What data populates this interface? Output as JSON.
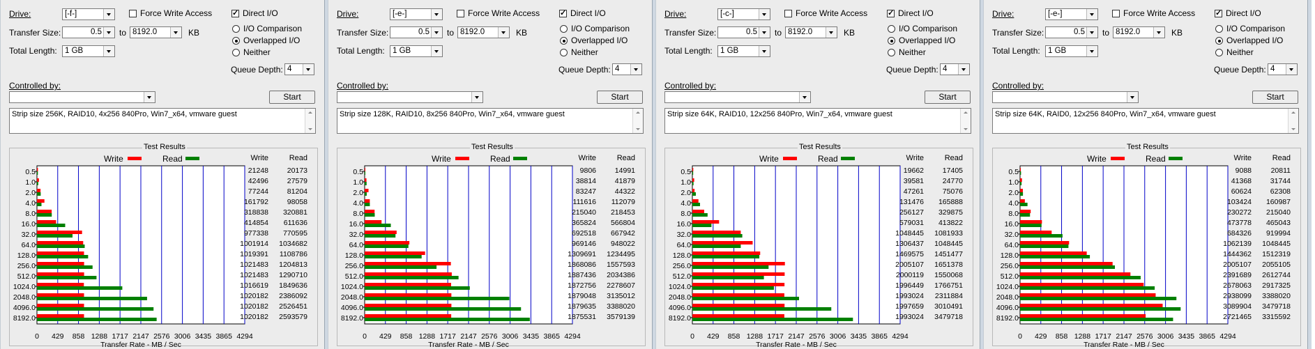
{
  "labels": {
    "drive": "Drive:",
    "transfer_size": "Transfer Size:",
    "to": "to",
    "kb": "KB",
    "total_length": "Total Length:",
    "force_write_access": "Force Write Access",
    "direct_io": "Direct I/O",
    "io_comparison": "I/O Comparison",
    "overlapped_io": "Overlapped I/O",
    "neither": "Neither",
    "queue_depth": "Queue Depth:",
    "controlled_by": "Controlled by:",
    "start": "Start",
    "test_results": "Test Results",
    "write": "Write",
    "read": "Read",
    "x_axis_title": "Transfer Rate - MB / Sec"
  },
  "colors": {
    "write": "#ff0000",
    "read": "#008000",
    "gridline": "#0000c8",
    "window_bg": "#ececec"
  },
  "panels": [
    {
      "drive": "[-f-]",
      "transfer_min": "0.5",
      "transfer_max": "8192.0",
      "total_length": "1 GB",
      "force_write_access": false,
      "direct_io": true,
      "mode": "overlapped",
      "queue_depth": "4",
      "controlled_by": "",
      "description": "Strip size 256K, RAID10, 4x256 840Pro, Win7_x64, vmware guest",
      "write": [
        "21248",
        "42496",
        "77244",
        "161792",
        "318838",
        "414854",
        "977338",
        "1001914",
        "1019391",
        "1021483",
        "1021483",
        "1016619",
        "1020182",
        "1020182",
        "1020182"
      ],
      "read": [
        "20173",
        "27579",
        "81204",
        "98058",
        "320881",
        "611636",
        "770595",
        "1034682",
        "1108786",
        "1204813",
        "1290710",
        "1849636",
        "2386092",
        "2526451",
        "2593579"
      ]
    },
    {
      "drive": "[-e-]",
      "transfer_min": "0.5",
      "transfer_max": "8192.0",
      "total_length": "1 GB",
      "force_write_access": false,
      "direct_io": true,
      "mode": "overlapped",
      "queue_depth": "4",
      "controlled_by": "",
      "description": "Strip size 128K, RAID10, 8x256 840Pro, Win7_x64, vmware guest",
      "write": [
        "9806",
        "38814",
        "83247",
        "111616",
        "215040",
        "365824",
        "692518",
        "969146",
        "1309691",
        "1868086",
        "1887436",
        "1872756",
        "1879048",
        "1879635",
        "1875531"
      ],
      "read": [
        "14991",
        "41879",
        "44322",
        "112079",
        "218453",
        "566804",
        "667942",
        "948022",
        "1234495",
        "1557593",
        "2034386",
        "2278607",
        "3135012",
        "3388020",
        "3579139"
      ]
    },
    {
      "drive": "[-c-]",
      "transfer_min": "0.5",
      "transfer_max": "8192.0",
      "total_length": "1 GB",
      "force_write_access": false,
      "direct_io": true,
      "mode": "overlapped",
      "queue_depth": "4",
      "controlled_by": "",
      "description": "Strip size 64K, RAID10, 12x256 840Pro, Win7_x64, vmware guest",
      "write": [
        "19662",
        "39581",
        "47261",
        "131476",
        "256127",
        "579031",
        "1048445",
        "1306437",
        "1469575",
        "2005107",
        "2000119",
        "1996449",
        "1993024",
        "1997659",
        "1993024"
      ],
      "read": [
        "17405",
        "24770",
        "75076",
        "165888",
        "329875",
        "413822",
        "1081933",
        "1048445",
        "1451477",
        "1651378",
        "1550068",
        "1766751",
        "2311884",
        "3010491",
        "3479718"
      ]
    },
    {
      "drive": "[-e-]",
      "transfer_min": "0.5",
      "transfer_max": "8192.0",
      "total_length": "1 GB",
      "force_write_access": false,
      "direct_io": true,
      "mode": "overlapped",
      "queue_depth": "4",
      "controlled_by": "",
      "description": "Strip size 64K, RAID0, 12x256 840Pro, Win7_x64, vmware guest",
      "write": [
        "9088",
        "41368",
        "60624",
        "103424",
        "230272",
        "473778",
        "684326",
        "1062139",
        "1444362",
        "2005107",
        "2391689",
        "2678063",
        "2938099",
        "3089904",
        "2721465"
      ],
      "read": [
        "20811",
        "31744",
        "62308",
        "160987",
        "215040",
        "465043",
        "919994",
        "1048445",
        "1512319",
        "2055105",
        "2612744",
        "2917325",
        "3388020",
        "3479718",
        "3315592"
      ]
    }
  ],
  "chart_data": {
    "type": "bar",
    "orientation": "horizontal",
    "xlabel": "Transfer Rate - MB / Sec",
    "ylabel": "",
    "categories": [
      "0.5",
      "1.0",
      "2.0",
      "4.0",
      "8.0",
      "16.0",
      "32.0",
      "64.0",
      "128.0",
      "256.0",
      "512.0",
      "1024.0",
      "2048.0",
      "4096.0",
      "8192.0"
    ],
    "x_ticks": [
      "0",
      "429",
      "858",
      "1288",
      "1717",
      "2147",
      "2576",
      "3006",
      "3435",
      "3865",
      "4294"
    ],
    "xlim": [
      0,
      4294
    ],
    "grid": true,
    "legend": "top",
    "charts": [
      {
        "series": [
          {
            "name": "Write",
            "values": [
              20.3,
              40.5,
              73.7,
              154.3,
              304.1,
              395.6,
              932.0,
              955.5,
              972.2,
              974.2,
              974.2,
              969.5,
              972.9,
              972.9,
              972.9
            ]
          },
          {
            "name": "Read",
            "values": [
              19.2,
              26.3,
              77.4,
              93.5,
              306.0,
              583.3,
              734.9,
              986.7,
              1057.4,
              1149.0,
              1230.9,
              1764.0,
              2275.5,
              2409.4,
              2473.4
            ]
          }
        ]
      },
      {
        "series": [
          {
            "name": "Write",
            "values": [
              9.4,
              37.0,
              79.4,
              106.4,
              205.1,
              348.9,
              660.4,
              924.2,
              1249.0,
              1781.5,
              1800.0,
              1786.0,
              1792.0,
              1792.6,
              1788.6
            ]
          },
          {
            "name": "Read",
            "values": [
              14.3,
              39.9,
              42.3,
              106.9,
              208.3,
              540.5,
              637.0,
              904.1,
              1177.3,
              1485.4,
              1940.1,
              2173.0,
              2989.8,
              3231.1,
              3413.3
            ]
          }
        ]
      },
      {
        "series": [
          {
            "name": "Write",
            "values": [
              18.8,
              37.7,
              45.1,
              125.4,
              244.3,
              552.2,
              999.9,
              1245.9,
              1401.5,
              1912.2,
              1907.5,
              1904.0,
              1900.7,
              1905.1,
              1900.7
            ]
          },
          {
            "name": "Read",
            "values": [
              16.6,
              23.6,
              71.6,
              158.2,
              314.6,
              394.7,
              1031.8,
              999.9,
              1384.2,
              1574.9,
              1478.3,
              1684.9,
              2204.7,
              2871.1,
              3318.5
            ]
          }
        ]
      },
      {
        "series": [
          {
            "name": "Write",
            "values": [
              8.7,
              39.5,
              57.8,
              98.6,
              219.6,
              451.8,
              652.6,
              1012.9,
              1377.5,
              1912.2,
              2280.9,
              2554.0,
              2802.0,
              2946.8,
              2595.4
            ]
          },
          {
            "name": "Read",
            "values": [
              19.8,
              30.3,
              59.4,
              153.5,
              205.1,
              443.5,
              877.4,
              999.9,
              1442.3,
              1959.9,
              2491.7,
              2782.2,
              3231.1,
              3318.5,
              3162.0
            ]
          }
        ]
      }
    ]
  }
}
